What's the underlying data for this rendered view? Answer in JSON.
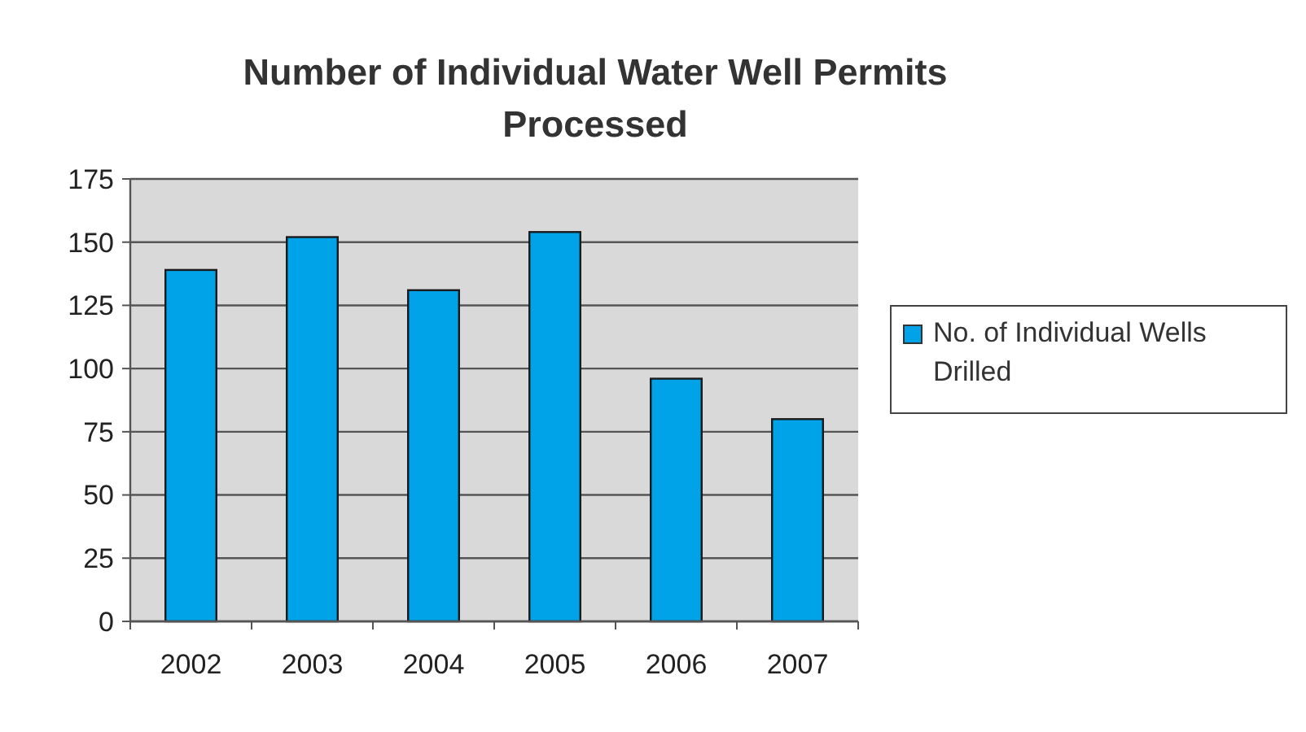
{
  "chart_data": {
    "type": "bar",
    "title": "Number of Individual Water Well Permits Processed",
    "categories": [
      "2002",
      "2003",
      "2004",
      "2005",
      "2006",
      "2007"
    ],
    "series": [
      {
        "name": "No. of Individual Wells Drilled",
        "color": "#00a2e8",
        "values": [
          139,
          152,
          131,
          154,
          96,
          80
        ]
      }
    ],
    "ylim": [
      0,
      175
    ],
    "yticks": [
      0,
      25,
      50,
      75,
      100,
      125,
      150,
      175
    ],
    "grid": "y",
    "legend": "right"
  }
}
